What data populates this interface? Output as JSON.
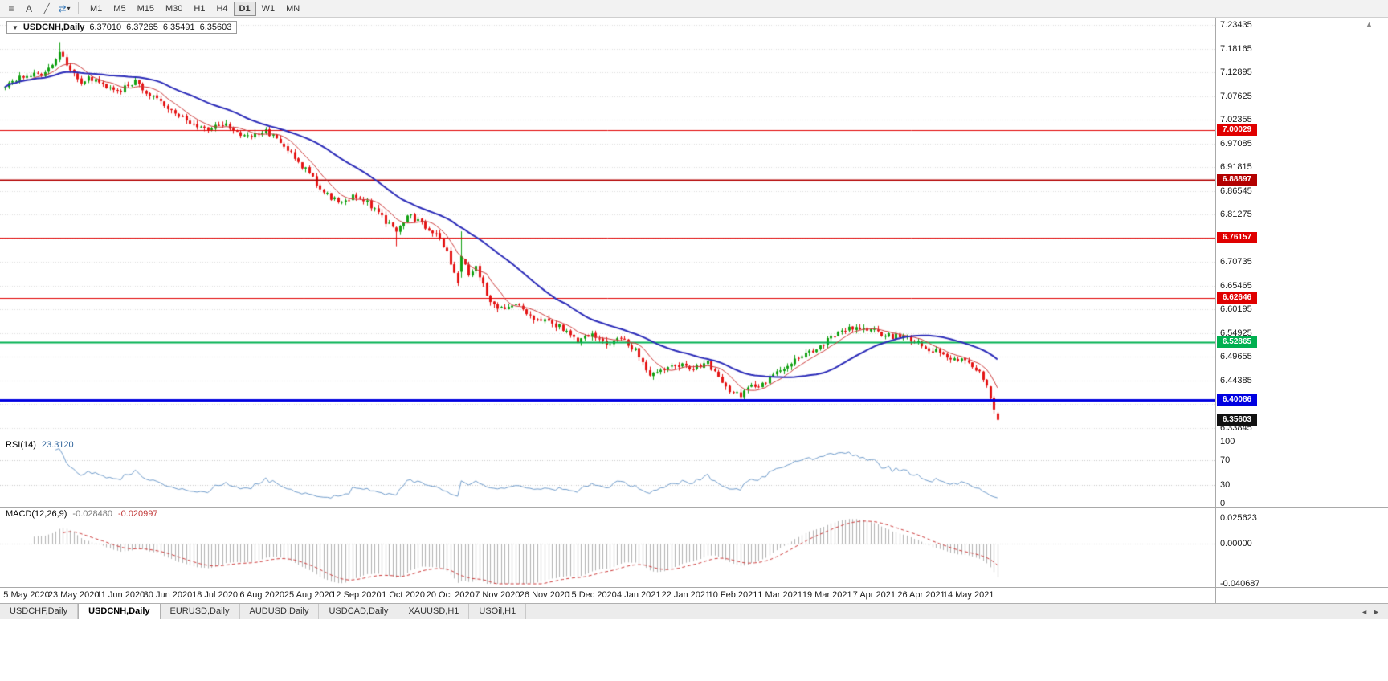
{
  "toolbar": {
    "timeframes": [
      "M1",
      "M5",
      "M15",
      "M30",
      "H1",
      "H4",
      "D1",
      "W1",
      "MN"
    ],
    "active_timeframe": "D1",
    "icon_glyphs": {
      "menu": "≡",
      "text": "A",
      "trend": "╱",
      "sync": "⇄",
      "caret": "▾"
    }
  },
  "chart": {
    "collapse_indicator": "▼",
    "corner_arrow": "▲",
    "quote": {
      "symbol_period": "USDCNH,Daily",
      "open": "6.37010",
      "high": "6.37265",
      "low": "6.35491",
      "close": "6.35603"
    },
    "price_axis_labels": [
      "7.23435",
      "7.18165",
      "7.12895",
      "7.07625",
      "7.02355",
      "6.97085",
      "6.91815",
      "6.86545",
      "6.81275",
      "6.76005",
      "6.70735",
      "6.65465",
      "6.60195",
      "6.54925",
      "6.49655",
      "6.44385",
      "6.39115",
      "6.33845"
    ],
    "levels": [
      {
        "price": "7.00029",
        "color": "#e00000",
        "width": 1
      },
      {
        "price": "6.88897",
        "color": "#b30000",
        "width": 2
      },
      {
        "price": "6.76157",
        "color": "#e00000",
        "width": 1
      },
      {
        "price": "6.62646",
        "color": "#e00000",
        "width": 1
      },
      {
        "price": "6.52865",
        "color": "#00b050",
        "width": 2
      },
      {
        "price": "6.40086",
        "color": "#0000e0",
        "width": 3
      }
    ]
  },
  "rsi": {
    "label": "RSI(14)",
    "value": "23.3120",
    "guide_levels": [
      70,
      30
    ],
    "axis": [
      {
        "label": "100",
        "value": 100
      },
      {
        "label": "70",
        "value": 70
      },
      {
        "label": "30",
        "value": 30
      },
      {
        "label": "0",
        "value": 0
      }
    ]
  },
  "macd": {
    "label": "MACD(12,26,9)",
    "value_main": "-0.028480",
    "value_signal": "-0.020997",
    "axis_top": "0.025623",
    "axis_zero": "0.00000",
    "axis_bottom": "-0.040687"
  },
  "date_axis": [
    "5 May 2020",
    "23 May 2020",
    "11 Jun 2020",
    "30 Jun 2020",
    "18 Jul 2020",
    "6 Aug 2020",
    "25 Aug 2020",
    "12 Sep 2020",
    "1 Oct 2020",
    "20 Oct 2020",
    "7 Nov 2020",
    "26 Nov 2020",
    "15 Dec 2020",
    "4 Jan 2021",
    "22 Jan 2021",
    "10 Feb 2021",
    "1 Mar 2021",
    "19 Mar 2021",
    "7 Apr 2021",
    "26 Apr 2021",
    "14 May 2021"
  ],
  "tabs": [
    {
      "label": "USDCHF,Daily",
      "active": false
    },
    {
      "label": "USDCNH,Daily",
      "active": true
    },
    {
      "label": "EURUSD,Daily",
      "active": false
    },
    {
      "label": "AUDUSD,Daily",
      "active": false
    },
    {
      "label": "USDCAD,Daily",
      "active": false
    },
    {
      "label": "XAUUSD,H1",
      "active": false
    },
    {
      "label": "USOil,H1",
      "active": false
    }
  ],
  "tabbar": {
    "scroll_left": "◄",
    "scroll_right": "►"
  },
  "colors": {
    "up": "#13a113",
    "down": "#e41515",
    "ma_fast": "#cc3a3a",
    "ma_slow": "#2a2ab8",
    "rsi_line": "#6f9bca",
    "macd_hist": "#b0b0b0",
    "macd_signal": "#cc3a3a",
    "grid": "#dcdcdc",
    "current_badge_bg": "#111111"
  },
  "chart_data": {
    "type": "candlestick",
    "symbol": "USDCNH",
    "period": "Daily",
    "visible_range": {
      "first_label": "5 May 2020",
      "last_label": "14 May 2021",
      "price_top": 7.2504,
      "price_bottom": 6.3162
    },
    "last_candle": {
      "open": 6.3701,
      "high": 6.37265,
      "low": 6.35491,
      "close": 6.35603
    },
    "horizontal_lines": [
      7.00029,
      6.88897,
      6.76157,
      6.62646,
      6.52865,
      6.40086
    ],
    "indicators": [
      {
        "name": "MA fast (red)",
        "period": 8
      },
      {
        "name": "MA slow (blue)",
        "period": 30
      },
      {
        "name": "RSI",
        "period": 14,
        "last_value": 23.312
      },
      {
        "name": "MACD",
        "fast": 12,
        "slow": 26,
        "signal": 9,
        "last_main": -0.02848,
        "last_signal": -0.020997
      }
    ],
    "candles_count": 275,
    "ma_fast_period": 8,
    "ma_slow_period": 30,
    "close_path_anchors": [
      [
        0,
        7.1
      ],
      [
        5,
        7.122
      ],
      [
        11,
        7.128
      ],
      [
        14,
        7.162
      ],
      [
        15,
        7.178
      ],
      [
        17,
        7.148
      ],
      [
        21,
        7.1
      ],
      [
        23,
        7.118
      ],
      [
        27,
        7.1
      ],
      [
        32,
        7.09
      ],
      [
        36,
        7.11
      ],
      [
        40,
        7.078
      ],
      [
        44,
        7.058
      ],
      [
        48,
        7.035
      ],
      [
        52,
        7.012
      ],
      [
        56,
        6.998
      ],
      [
        60,
        7.015
      ],
      [
        64,
        6.995
      ],
      [
        68,
        6.985
      ],
      [
        72,
        6.998
      ],
      [
        76,
        6.972
      ],
      [
        80,
        6.94
      ],
      [
        84,
        6.902
      ],
      [
        88,
        6.862
      ],
      [
        92,
        6.84
      ],
      [
        96,
        6.852
      ],
      [
        100,
        6.84
      ],
      [
        104,
        6.806
      ],
      [
        108,
        6.772
      ],
      [
        111,
        6.815
      ],
      [
        115,
        6.79
      ],
      [
        119,
        6.772
      ],
      [
        122,
        6.73
      ],
      [
        125,
        6.658
      ],
      [
        126,
        6.715
      ],
      [
        128,
        6.678
      ],
      [
        130,
        6.695
      ],
      [
        132,
        6.655
      ],
      [
        134,
        6.618
      ],
      [
        138,
        6.598
      ],
      [
        142,
        6.612
      ],
      [
        146,
        6.582
      ],
      [
        151,
        6.57
      ],
      [
        155,
        6.556
      ],
      [
        158,
        6.532
      ],
      [
        162,
        6.546
      ],
      [
        166,
        6.52
      ],
      [
        170,
        6.536
      ],
      [
        174,
        6.512
      ],
      [
        178,
        6.458
      ],
      [
        182,
        6.466
      ],
      [
        186,
        6.478
      ],
      [
        190,
        6.468
      ],
      [
        194,
        6.482
      ],
      [
        197,
        6.448
      ],
      [
        200,
        6.42
      ],
      [
        203,
        6.408
      ],
      [
        206,
        6.438
      ],
      [
        208,
        6.424
      ],
      [
        211,
        6.452
      ],
      [
        214,
        6.468
      ],
      [
        218,
        6.488
      ],
      [
        222,
        6.506
      ],
      [
        226,
        6.528
      ],
      [
        230,
        6.55
      ],
      [
        233,
        6.562
      ],
      [
        236,
        6.554
      ],
      [
        239,
        6.56
      ],
      [
        242,
        6.548
      ],
      [
        245,
        6.54
      ],
      [
        248,
        6.546
      ],
      [
        251,
        6.53
      ],
      [
        254,
        6.515
      ],
      [
        257,
        6.508
      ],
      [
        260,
        6.498
      ],
      [
        263,
        6.492
      ],
      [
        266,
        6.478
      ],
      [
        268,
        6.468
      ],
      [
        270,
        6.448
      ],
      [
        271,
        6.43
      ],
      [
        272,
        6.405
      ],
      [
        273,
        6.38
      ],
      [
        274,
        6.356
      ]
    ],
    "candle_overrides": [
      {
        "i": 15,
        "h": 7.196
      },
      {
        "i": 108,
        "l": 6.742
      },
      {
        "i": 126,
        "o": 6.685,
        "h": 6.775,
        "l": 6.672,
        "c": 6.72
      },
      {
        "i": 273,
        "o": 6.405,
        "h": 6.409,
        "l": 6.37,
        "c": 6.379
      },
      {
        "i": 274,
        "o": 6.3701,
        "h": 6.37265,
        "l": 6.35491,
        "c": 6.35603
      }
    ]
  }
}
